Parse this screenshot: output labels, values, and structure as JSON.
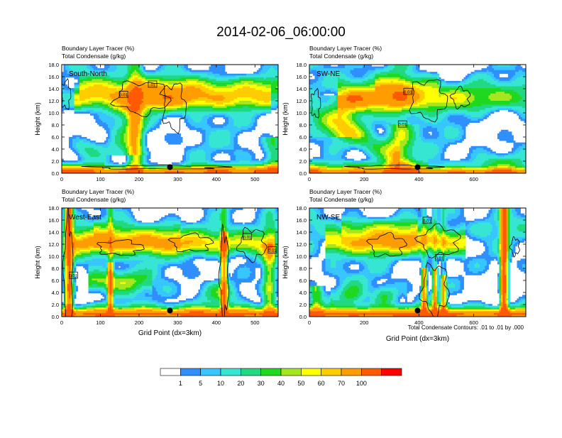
{
  "title": "2014-02-06_06:00:00",
  "colors": {
    "levels": [
      "#ffffff",
      "#2f8fff",
      "#37c6ff",
      "#36e6d2",
      "#21d883",
      "#1fd81f",
      "#a6e61e",
      "#ffff00",
      "#ffcc00",
      "#ff9c00",
      "#ff5a00",
      "#ff0000"
    ],
    "contour": "#000000",
    "marker": "#000000"
  },
  "legend": {
    "labels": [
      "1",
      "5",
      "10",
      "20",
      "30",
      "40",
      "50",
      "60",
      "70",
      "100"
    ]
  },
  "footnote": "Total Condensate Contours: .01 to .01 by .000",
  "chart_data": [
    {
      "type": "heatmap",
      "name": "South-North",
      "subtitle_line1": "Boundary Layer Tracer   (%)",
      "subtitle_line2": "Total Condensate   (g/kg)",
      "ylabel": "Height (km)",
      "xlabel": "",
      "xlim": [
        0,
        560
      ],
      "ylim": [
        0,
        18
      ],
      "xticks": [
        0,
        100,
        200,
        300,
        400,
        500
      ],
      "yticks": [
        "0.0",
        "2.0",
        "4.0",
        "6.0",
        "8.0",
        "10.0",
        "12.0",
        "14.0",
        "16.0",
        "18.0"
      ],
      "contour_labels": [
        {
          "text": "0.01",
          "x": 160,
          "y": 13
        },
        {
          "text": ".01",
          "x": 235,
          "y": 14.7
        }
      ],
      "marker": {
        "x": 280,
        "y": 1.0
      },
      "variant": 0
    },
    {
      "type": "heatmap",
      "name": "SW-NE",
      "subtitle_line1": "Boundary Layer Tracer   (%)",
      "subtitle_line2": "Total Condensate   (g/kg)",
      "ylabel": "Height (km)",
      "xlabel": "",
      "xlim": [
        0,
        790
      ],
      "ylim": [
        0,
        18
      ],
      "xticks": [
        0,
        200,
        400,
        600
      ],
      "yticks": [
        "0.0",
        "2.0",
        "4.0",
        "6.0",
        "8.0",
        "10.0",
        "12.0",
        "14.0",
        "16.0",
        "18.0"
      ],
      "contour_labels": [
        {
          "text": "0.01",
          "x": 360,
          "y": 13.5
        },
        {
          "text": "0.01",
          "x": 340,
          "y": 8.1
        }
      ],
      "marker": {
        "x": 395,
        "y": 1.0
      },
      "variant": 1
    },
    {
      "type": "heatmap",
      "name": "West-East",
      "subtitle_line1": "Boundary Layer Tracer   (%)",
      "subtitle_line2": "Total Condensate   (g/kg)",
      "ylabel": "Height (km)",
      "xlabel": "Grid Point (dx=3km)",
      "xlim": [
        0,
        560
      ],
      "ylim": [
        0,
        18
      ],
      "xticks": [
        0,
        100,
        200,
        300,
        400,
        500
      ],
      "yticks": [
        "0.0",
        "2.0",
        "4.0",
        "6.0",
        "8.0",
        "10.0",
        "12.0",
        "14.0",
        "16.0",
        "18.0"
      ],
      "contour_labels": [
        {
          "text": "0.01",
          "x": 30,
          "y": 6.8
        },
        {
          "text": "0.01",
          "x": 480,
          "y": 13.2
        },
        {
          "text": "0.01",
          "x": 545,
          "y": 11
        }
      ],
      "marker": {
        "x": 280,
        "y": 1.0
      },
      "variant": 2
    },
    {
      "type": "heatmap",
      "name": "NW-SE",
      "subtitle_line1": "Boundary Layer Tracer   (%)",
      "subtitle_line2": "Total Condensate   (g/kg)",
      "ylabel": "Height (km)",
      "xlabel": "Grid Point (dx=3km)",
      "xlim": [
        0,
        790
      ],
      "ylim": [
        0,
        18
      ],
      "xticks": [
        0,
        200,
        400,
        600
      ],
      "yticks": [
        "0.0",
        "2.0",
        "4.0",
        "6.0",
        "8.0",
        "10.0",
        "12.0",
        "14.0",
        "16.0",
        "18.0"
      ],
      "contour_labels": [
        {
          "text": "0.01",
          "x": 430,
          "y": 15.9
        },
        {
          "text": "0.01",
          "x": 475,
          "y": 9.7
        }
      ],
      "marker": {
        "x": 395,
        "y": 1.0
      },
      "variant": 3
    }
  ]
}
